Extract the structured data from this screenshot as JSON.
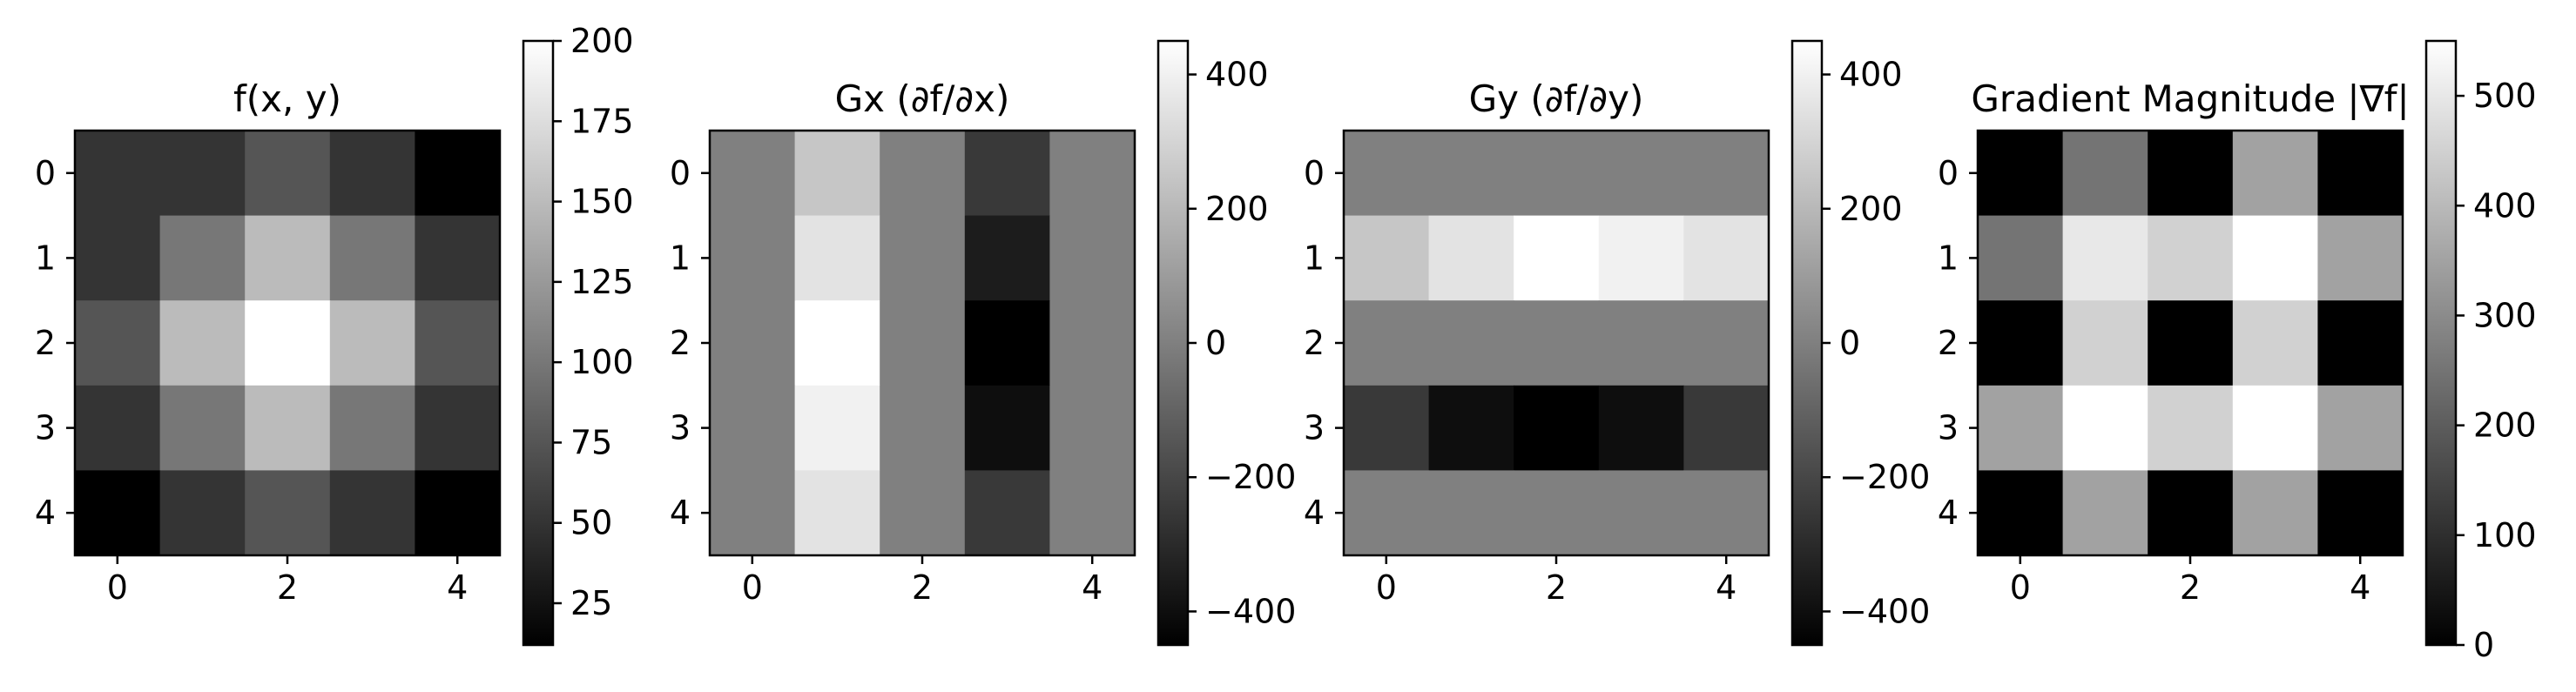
{
  "colors": {
    "background": "#ffffff",
    "axis": "#000000",
    "colormap": "gray"
  },
  "chart_data": [
    {
      "type": "heatmap",
      "title": "f(x, y)",
      "xlabel": "",
      "ylabel": "",
      "x_ticks": [
        "0",
        "2",
        "4"
      ],
      "y_ticks": [
        "0",
        "1",
        "2",
        "3",
        "4"
      ],
      "values": [
        [
          50,
          50,
          75,
          50,
          12
        ],
        [
          50,
          100,
          150,
          100,
          50
        ],
        [
          75,
          150,
          200,
          150,
          75
        ],
        [
          50,
          100,
          150,
          100,
          50
        ],
        [
          12,
          50,
          75,
          50,
          12
        ]
      ],
      "vmin": 12,
      "vmax": 200,
      "colorbar_ticks": [
        "25",
        "50",
        "75",
        "100",
        "125",
        "150",
        "175",
        "200"
      ]
    },
    {
      "type": "heatmap",
      "title": "Gx (∂f/∂x)",
      "xlabel": "",
      "ylabel": "",
      "x_ticks": [
        "0",
        "2",
        "4"
      ],
      "y_ticks": [
        "0",
        "1",
        "2",
        "3",
        "4"
      ],
      "values": [
        [
          0,
          250,
          0,
          -250,
          0
        ],
        [
          0,
          350,
          0,
          -350,
          0
        ],
        [
          0,
          450,
          0,
          -450,
          0
        ],
        [
          0,
          400,
          0,
          -400,
          0
        ],
        [
          0,
          350,
          0,
          -250,
          0
        ]
      ],
      "vmin": -450,
      "vmax": 450,
      "colorbar_ticks": [
        "−400",
        "−200",
        "0",
        "200",
        "400"
      ]
    },
    {
      "type": "heatmap",
      "title": "Gy (∂f/∂y)",
      "xlabel": "",
      "ylabel": "",
      "x_ticks": [
        "0",
        "2",
        "4"
      ],
      "y_ticks": [
        "0",
        "1",
        "2",
        "3",
        "4"
      ],
      "values": [
        [
          0,
          0,
          0,
          0,
          0
        ],
        [
          250,
          350,
          450,
          400,
          350
        ],
        [
          0,
          0,
          0,
          0,
          0
        ],
        [
          -250,
          -400,
          -450,
          -400,
          -250
        ],
        [
          0,
          0,
          0,
          0,
          0
        ]
      ],
      "vmin": -450,
      "vmax": 450,
      "colorbar_ticks": [
        "−400",
        "−200",
        "0",
        "200",
        "400"
      ]
    },
    {
      "type": "heatmap",
      "title": "Gradient Magnitude |∇f|",
      "xlabel": "",
      "ylabel": "",
      "x_ticks": [
        "0",
        "2",
        "4"
      ],
      "y_ticks": [
        "0",
        "1",
        "2",
        "3",
        "4"
      ],
      "values": [
        [
          0,
          250,
          0,
          350,
          0
        ],
        [
          250,
          500,
          450,
          550,
          350
        ],
        [
          0,
          450,
          0,
          450,
          0
        ],
        [
          350,
          550,
          450,
          550,
          350
        ],
        [
          0,
          350,
          0,
          350,
          0
        ]
      ],
      "vmin": 0,
      "vmax": 550,
      "colorbar_ticks": [
        "0",
        "100",
        "200",
        "300",
        "400",
        "500"
      ]
    }
  ]
}
